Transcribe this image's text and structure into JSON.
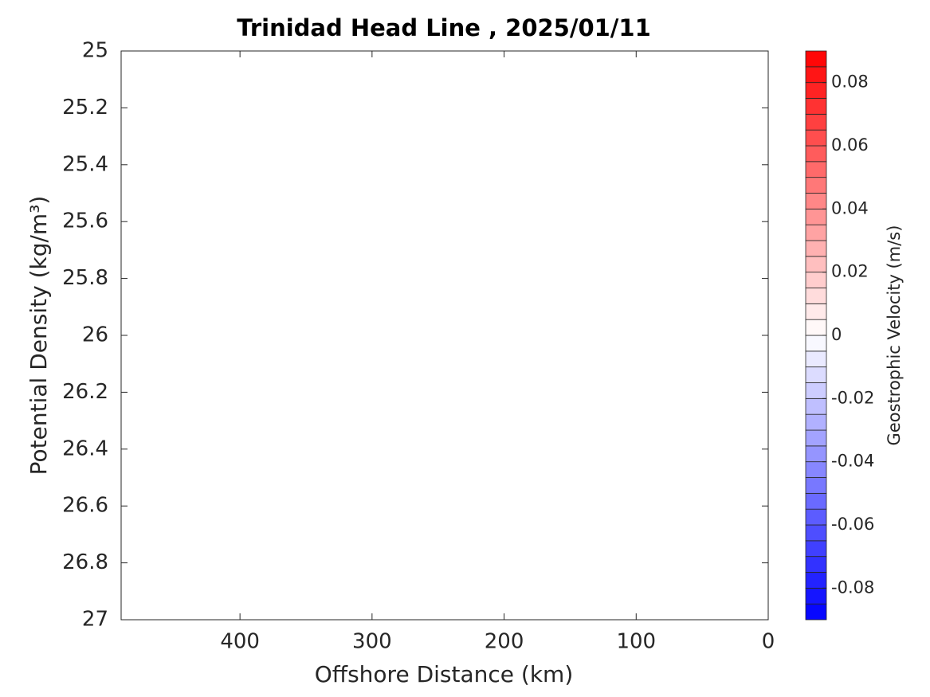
{
  "chart_data": {
    "type": "contour",
    "title": "Trinidad Head Line , 2025/01/11",
    "xlabel": "Offshore Distance (km)",
    "ylabel": "Potential Density (kg/m³)",
    "xlim": [
      490,
      0
    ],
    "xticks": [
      400,
      300,
      200,
      100,
      0
    ],
    "ylim": [
      25,
      27
    ],
    "y_direction": "reverse",
    "yticks": [
      25,
      25.2,
      25.4,
      25.6,
      25.8,
      26,
      26.2,
      26.4,
      26.6,
      26.8,
      27
    ],
    "colorbar": {
      "label": "Geostrophic Velocity (m/s)",
      "lim": [
        -0.09,
        0.09
      ],
      "ticks": [
        -0.08,
        -0.06,
        -0.04,
        -0.02,
        0,
        0.02,
        0.04,
        0.06,
        0.08
      ],
      "levels": [
        -0.09,
        -0.085,
        -0.08,
        -0.075,
        -0.07,
        -0.065,
        -0.06,
        -0.055,
        -0.05,
        -0.045,
        -0.04,
        -0.035,
        -0.03,
        -0.025,
        -0.02,
        -0.015,
        -0.01,
        -0.005,
        0,
        0.005,
        0.01,
        0.015,
        0.02,
        0.025,
        0.03,
        0.035,
        0.04,
        0.045,
        0.05,
        0.055,
        0.06,
        0.065,
        0.07,
        0.075,
        0.08,
        0.085,
        0.09
      ],
      "colormap": [
        "#0000ff",
        "#ffffff",
        "#ff0000"
      ]
    }
  }
}
